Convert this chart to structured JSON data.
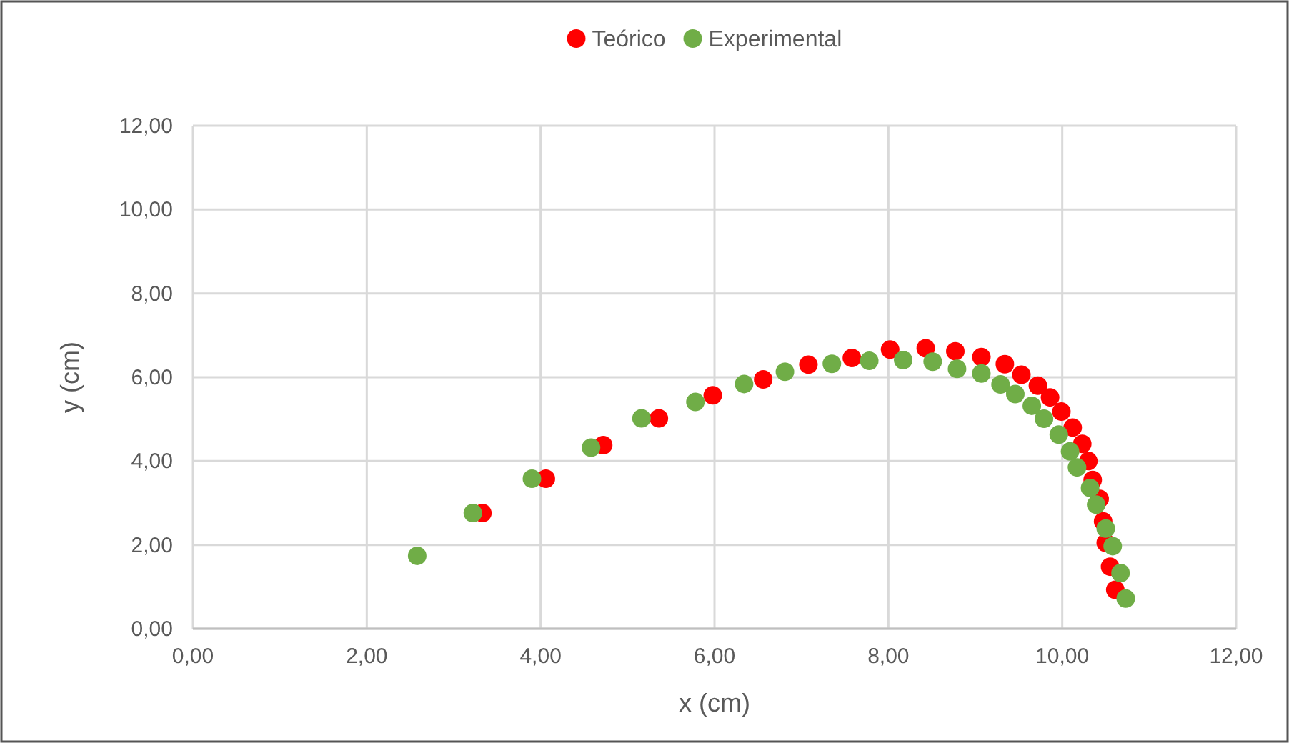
{
  "chart_data": {
    "type": "scatter",
    "xlabel": "x (cm)",
    "ylabel": "y (cm)",
    "xlim": [
      0,
      12
    ],
    "ylim": [
      0,
      12
    ],
    "xticks": [
      {
        "value": 0,
        "label": "0,00"
      },
      {
        "value": 2,
        "label": "2,00"
      },
      {
        "value": 4,
        "label": "4,00"
      },
      {
        "value": 6,
        "label": "6,00"
      },
      {
        "value": 8,
        "label": "8,00"
      },
      {
        "value": 10,
        "label": "10,00"
      },
      {
        "value": 12,
        "label": "12,00"
      }
    ],
    "yticks": [
      {
        "value": 0,
        "label": "0,00"
      },
      {
        "value": 2,
        "label": "2,00"
      },
      {
        "value": 4,
        "label": "4,00"
      },
      {
        "value": 6,
        "label": "6,00"
      },
      {
        "value": 8,
        "label": "8,00"
      },
      {
        "value": 10,
        "label": "10,00"
      },
      {
        "value": 12,
        "label": "12,00"
      }
    ],
    "grid": true,
    "legend": "top",
    "marker": "circle",
    "series": [
      {
        "name": "Teórico",
        "color": "#ff0000",
        "x": [
          3.33,
          4.06,
          4.72,
          5.36,
          5.98,
          6.56,
          7.08,
          7.58,
          8.02,
          8.43,
          8.77,
          9.07,
          9.34,
          9.53,
          9.72,
          9.86,
          9.99,
          10.12,
          10.23,
          10.3,
          10.35,
          10.43,
          10.47,
          10.5,
          10.55,
          10.61
        ],
        "values": [
          2.76,
          3.58,
          4.38,
          5.02,
          5.57,
          5.95,
          6.3,
          6.46,
          6.66,
          6.69,
          6.62,
          6.48,
          6.31,
          6.06,
          5.8,
          5.52,
          5.18,
          4.8,
          4.41,
          4.0,
          3.55,
          3.1,
          2.56,
          2.05,
          1.48,
          0.93
        ]
      },
      {
        "name": "Experimental",
        "color": "#70ad47",
        "x": [
          2.58,
          3.22,
          3.9,
          4.58,
          5.16,
          5.78,
          6.34,
          6.81,
          7.35,
          7.78,
          8.17,
          8.51,
          8.79,
          9.07,
          9.29,
          9.46,
          9.65,
          9.79,
          9.96,
          10.09,
          10.17,
          10.32,
          10.39,
          10.5,
          10.58,
          10.67,
          10.73
        ],
        "values": [
          1.74,
          2.76,
          3.58,
          4.32,
          5.02,
          5.41,
          5.84,
          6.13,
          6.32,
          6.39,
          6.41,
          6.37,
          6.2,
          6.09,
          5.83,
          5.6,
          5.32,
          5.01,
          4.63,
          4.23,
          3.85,
          3.36,
          2.96,
          2.39,
          1.97,
          1.33,
          0.72
        ]
      }
    ]
  }
}
